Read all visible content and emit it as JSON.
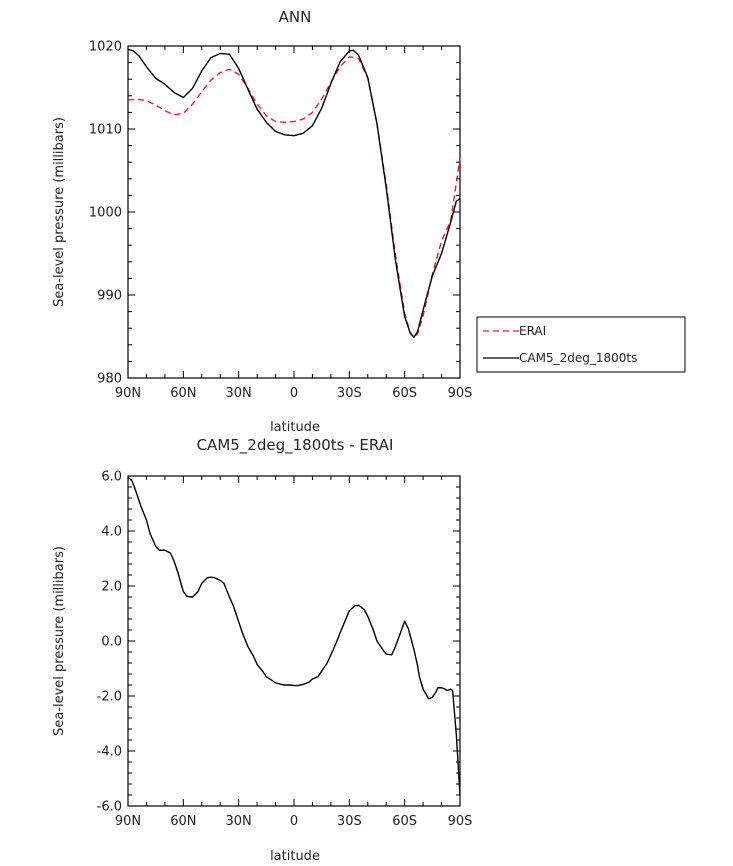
{
  "chart_data": [
    {
      "type": "line",
      "title": "ANN",
      "xlabel": "latitude",
      "ylabel": "Sea-level pressure (millibars)",
      "xlim": [
        90,
        -90
      ],
      "ylim": [
        980,
        1020
      ],
      "xticks": [
        90,
        60,
        30,
        0,
        -30,
        -60,
        -90
      ],
      "xtick_labels": [
        "90N",
        "60N",
        "30N",
        "0",
        "30S",
        "60S",
        "90S"
      ],
      "yticks": [
        980,
        990,
        1000,
        1010,
        1020
      ],
      "ytick_labels": [
        "980",
        "990",
        "1000",
        "1010",
        "1020"
      ],
      "grid": false,
      "legend": "right",
      "series": [
        {
          "name": "ERAI",
          "color": "#e8202a",
          "style": "dashed",
          "x": [
            90,
            85,
            80,
            75,
            70,
            65,
            60,
            55,
            50,
            45,
            40,
            35,
            30,
            25,
            20,
            15,
            10,
            5,
            0,
            -5,
            -10,
            -15,
            -20,
            -25,
            -30,
            -35,
            -40,
            -45,
            -50,
            -55,
            -60,
            -63,
            -65,
            -67,
            -70,
            -75,
            -80,
            -85,
            -88,
            -90
          ],
          "y": [
            1013.5,
            1013.6,
            1013.4,
            1012.9,
            1012.2,
            1011.7,
            1011.9,
            1013.0,
            1014.5,
            1015.9,
            1016.8,
            1017.2,
            1016.6,
            1014.9,
            1013.0,
            1011.6,
            1010.9,
            1010.8,
            1010.9,
            1011.2,
            1012.0,
            1013.6,
            1015.6,
            1017.5,
            1018.7,
            1018.5,
            1016.1,
            1010.6,
            1003.3,
            994.8,
            987.8,
            985.5,
            984.9,
            985.3,
            987.5,
            992.5,
            996.5,
            999.0,
            1003.5,
            1006.5
          ]
        },
        {
          "name": "CAM5_2deg_1800ts",
          "color": "#000000",
          "style": "solid",
          "x": [
            90,
            87,
            84,
            80,
            75,
            70,
            65,
            60,
            55,
            50,
            45,
            40,
            35,
            30,
            25,
            20,
            15,
            10,
            5,
            0,
            -5,
            -10,
            -15,
            -20,
            -25,
            -30,
            -32,
            -35,
            -40,
            -45,
            -50,
            -55,
            -60,
            -63,
            -65,
            -67,
            -70,
            -75,
            -80,
            -85,
            -88,
            -90
          ],
          "y": [
            1019.6,
            1019.4,
            1018.8,
            1017.5,
            1016.1,
            1015.4,
            1014.4,
            1013.8,
            1014.9,
            1017.0,
            1018.6,
            1019.1,
            1019.0,
            1017.3,
            1014.8,
            1012.4,
            1010.8,
            1009.7,
            1009.3,
            1009.2,
            1009.5,
            1010.4,
            1012.5,
            1015.5,
            1018.1,
            1019.4,
            1019.5,
            1018.9,
            1016.2,
            1010.6,
            1002.9,
            994.2,
            987.4,
            985.4,
            984.9,
            985.6,
            988.2,
            992.3,
            995.0,
            998.8,
            1001.3,
            1001.6
          ]
        }
      ]
    },
    {
      "type": "line",
      "title": "CAM5_2deg_1800ts - ERAI",
      "xlabel": "latitude",
      "ylabel": "Sea-level pressure (millibars)",
      "xlim": [
        90,
        -90
      ],
      "ylim": [
        -6,
        6
      ],
      "xticks": [
        90,
        60,
        30,
        0,
        -30,
        -60,
        -90
      ],
      "xtick_labels": [
        "90N",
        "60N",
        "30N",
        "0",
        "30S",
        "60S",
        "90S"
      ],
      "yticks": [
        -6,
        -4,
        -2,
        0,
        2,
        4,
        6
      ],
      "ytick_labels": [
        "-6.0",
        "-4.0",
        "-2.0",
        "0.0",
        "2.0",
        "4.0",
        "6.0"
      ],
      "grid": false,
      "series": [
        {
          "color": "#000000",
          "style": "solid",
          "x": [
            90,
            88,
            86,
            83,
            80,
            78,
            75,
            73,
            70,
            67,
            65,
            63,
            60,
            58,
            55,
            52,
            50,
            47,
            45,
            43,
            40,
            38,
            35,
            33,
            30,
            28,
            25,
            22,
            20,
            17,
            15,
            12,
            10,
            7,
            5,
            2,
            0,
            -2,
            -5,
            -8,
            -10,
            -13,
            -15,
            -18,
            -20,
            -23,
            -25,
            -28,
            -30,
            -33,
            -35,
            -38,
            -40,
            -43,
            -45,
            -48,
            -50,
            -53,
            -55,
            -58,
            -60,
            -62,
            -65,
            -67,
            -68,
            -70,
            -73,
            -75,
            -77,
            -78,
            -80,
            -82,
            -83,
            -85,
            -86,
            -87,
            -88,
            -89,
            -90
          ],
          "y": [
            5.95,
            5.85,
            5.5,
            4.9,
            4.4,
            3.9,
            3.45,
            3.3,
            3.3,
            3.2,
            2.9,
            2.5,
            1.8,
            1.62,
            1.6,
            1.8,
            2.1,
            2.3,
            2.32,
            2.3,
            2.2,
            2.1,
            1.6,
            1.3,
            0.7,
            0.3,
            -0.2,
            -0.55,
            -0.85,
            -1.1,
            -1.3,
            -1.43,
            -1.52,
            -1.58,
            -1.6,
            -1.6,
            -1.62,
            -1.62,
            -1.58,
            -1.5,
            -1.38,
            -1.3,
            -1.1,
            -0.8,
            -0.5,
            -0.05,
            0.3,
            0.78,
            1.1,
            1.28,
            1.3,
            1.15,
            0.9,
            0.4,
            0.0,
            -0.3,
            -0.48,
            -0.5,
            -0.2,
            0.35,
            0.72,
            0.45,
            -0.3,
            -0.9,
            -1.3,
            -1.75,
            -2.1,
            -2.05,
            -1.85,
            -1.7,
            -1.7,
            -1.75,
            -1.8,
            -1.75,
            -1.8,
            -2.6,
            -3.4,
            -4.5,
            -5.6
          ]
        }
      ]
    }
  ]
}
